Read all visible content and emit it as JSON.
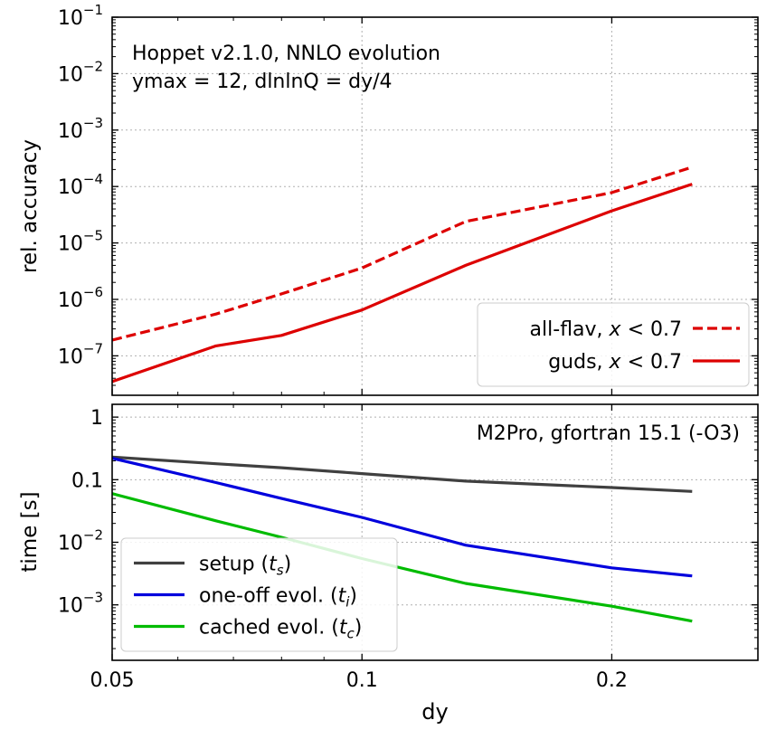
{
  "chart_data": [
    {
      "type": "line",
      "xlabel": "",
      "ylabel": "rel. accuracy",
      "xscale": "log",
      "yscale": "log",
      "xlim": [
        0.05,
        0.3
      ],
      "ylim": [
        2e-08,
        0.1
      ],
      "grid": true,
      "legend_position": "lower-right",
      "annotation": [
        "Hoppet v2.1.0, NNLO evolution",
        "ymax = 12, dlnlnQ = dy/4"
      ],
      "yticks": [
        {
          "value": 1e-07,
          "base": "10",
          "exp": "−7"
        },
        {
          "value": 1e-06,
          "base": "10",
          "exp": "−6"
        },
        {
          "value": 1e-05,
          "base": "10",
          "exp": "−5"
        },
        {
          "value": 0.0001,
          "base": "10",
          "exp": "−4"
        },
        {
          "value": 0.001,
          "base": "10",
          "exp": "−3"
        },
        {
          "value": 0.01,
          "base": "10",
          "exp": "−2"
        },
        {
          "value": 0.1,
          "base": "10",
          "exp": "−1"
        }
      ],
      "series": [
        {
          "name": "all-flav, x < 0.7",
          "legend": {
            "pre": "all-flav, ",
            "var": "x",
            "post": " < 0.7"
          },
          "color": "#dd0000",
          "dash": true,
          "x": [
            0.05,
            0.0667,
            0.08,
            0.1,
            0.1333,
            0.2,
            0.25
          ],
          "y": [
            1.9e-07,
            5.5e-07,
            1.25e-06,
            3.6e-06,
            2.4e-05,
            7.8e-05,
            0.00022
          ]
        },
        {
          "name": "guds, x < 0.7",
          "legend": {
            "pre": "guds, ",
            "var": "x",
            "post": " < 0.7"
          },
          "color": "#dd0000",
          "dash": false,
          "x": [
            0.05,
            0.0667,
            0.08,
            0.1,
            0.1333,
            0.2,
            0.25
          ],
          "y": [
            3.5e-08,
            1.5e-07,
            2.3e-07,
            6.5e-07,
            4e-06,
            3.7e-05,
            0.00011
          ]
        }
      ]
    },
    {
      "type": "line",
      "xlabel": "dy",
      "ylabel": "time [s]",
      "xscale": "log",
      "yscale": "log",
      "xlim": [
        0.05,
        0.3
      ],
      "ylim": [
        0.00013,
        1.6
      ],
      "grid": true,
      "legend_position": "lower-left",
      "annotation": [
        "M2Pro, gfortran 15.1 (-O3)"
      ],
      "xticks": [
        {
          "value": 0.05,
          "label": "0.05"
        },
        {
          "value": 0.1,
          "label": "0.1"
        },
        {
          "value": 0.2,
          "label": "0.2"
        }
      ],
      "yticks": [
        {
          "value": 0.001,
          "base": "10",
          "exp": "−3"
        },
        {
          "value": 0.01,
          "base": "10",
          "exp": "−2"
        },
        {
          "value": 0.1,
          "base": "0.1",
          "exp": ""
        },
        {
          "value": 1,
          "base": "1",
          "exp": ""
        }
      ],
      "series": [
        {
          "name": "setup (t_s)",
          "legend": {
            "pre": "setup (",
            "var": "t",
            "sub": "s",
            "post": ")"
          },
          "color": "#404040",
          "x": [
            0.05,
            0.0667,
            0.08,
            0.1,
            0.1333,
            0.2,
            0.25
          ],
          "y": [
            0.23,
            0.18,
            0.155,
            0.125,
            0.095,
            0.075,
            0.065
          ]
        },
        {
          "name": "one-off evol. (t_i)",
          "legend": {
            "pre": "one-off evol. (",
            "var": "t",
            "sub": "i",
            "post": ")"
          },
          "color": "#0000dd",
          "x": [
            0.05,
            0.0667,
            0.08,
            0.1,
            0.1333,
            0.2,
            0.25
          ],
          "y": [
            0.22,
            0.09,
            0.05,
            0.025,
            0.009,
            0.0039,
            0.0029
          ]
        },
        {
          "name": "cached evol. (t_c)",
          "legend": {
            "pre": "cached evol. (",
            "var": "t",
            "sub": "c",
            "post": ")"
          },
          "color": "#00bb00",
          "x": [
            0.05,
            0.0667,
            0.08,
            0.1,
            0.1333,
            0.2,
            0.25
          ],
          "y": [
            0.06,
            0.022,
            0.012,
            0.0055,
            0.0022,
            0.00095,
            0.00055
          ]
        }
      ]
    }
  ]
}
